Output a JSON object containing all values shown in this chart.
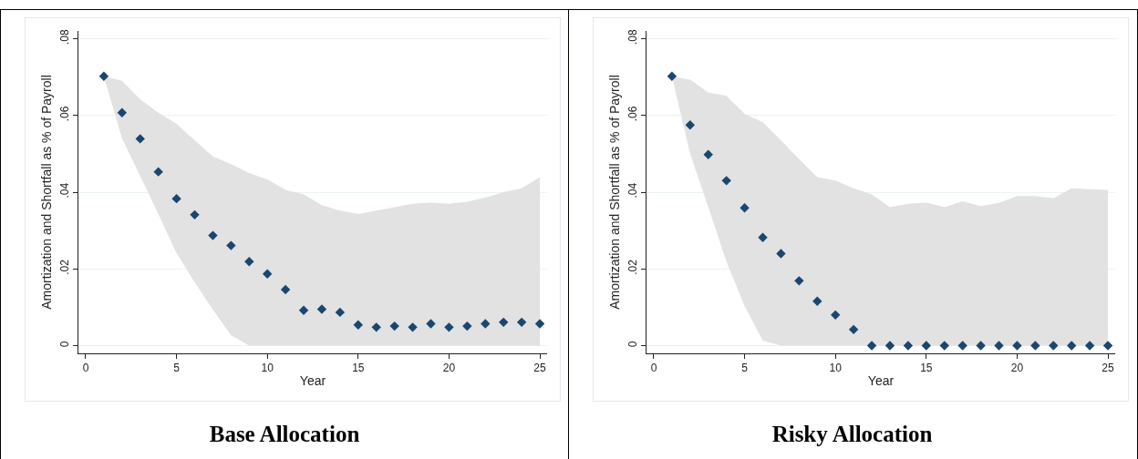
{
  "chart_data": [
    {
      "type": "scatter",
      "title": "Base Allocation",
      "xlabel": "Year",
      "ylabel": "Amortization and Shortfall as % of Payroll",
      "x": [
        1,
        2,
        3,
        4,
        5,
        6,
        7,
        8,
        9,
        10,
        11,
        12,
        13,
        14,
        15,
        16,
        17,
        18,
        19,
        20,
        21,
        22,
        23,
        24,
        25
      ],
      "series": [
        {
          "color": "#1a476f",
          "values": [
            0.0702,
            0.0607,
            0.0539,
            0.0453,
            0.0383,
            0.0341,
            0.0287,
            0.0261,
            0.0219,
            0.0187,
            0.0146,
            0.0092,
            0.0095,
            0.0087,
            0.0054,
            0.0048,
            0.0051,
            0.0048,
            0.0057,
            0.0048,
            0.0051,
            0.0057,
            0.0061,
            0.0061,
            0.0057
          ],
          "lower": [
            0.0702,
            0.054,
            0.0442,
            0.0343,
            0.0241,
            0.0165,
            0.0094,
            0.0027,
            0,
            0,
            0,
            0,
            0,
            0,
            0,
            0,
            0,
            0,
            0,
            0,
            0,
            0,
            0,
            0,
            0
          ],
          "upper": [
            0.0702,
            0.069,
            0.0642,
            0.0607,
            0.0578,
            0.0535,
            0.0493,
            0.0473,
            0.045,
            0.0433,
            0.0406,
            0.0394,
            0.0366,
            0.0352,
            0.0343,
            0.0352,
            0.0361,
            0.037,
            0.0373,
            0.037,
            0.0375,
            0.0386,
            0.04,
            0.041,
            0.0439
          ]
        }
      ],
      "xlim": [
        -0.4,
        25.4
      ],
      "xticks": [
        0,
        5,
        10,
        15,
        20,
        25
      ],
      "ylim": [
        -0.002,
        0.082
      ],
      "yticks": [
        0,
        {
          "value": 0.02,
          "label": ".02"
        },
        {
          "value": 0.04,
          "label": ".04"
        },
        {
          "value": 0.06,
          "label": ".06"
        },
        {
          "value": 0.08,
          "label": ".08"
        }
      ],
      "grid": "y",
      "marker": "diamond"
    },
    {
      "type": "scatter",
      "title": "Risky Allocation",
      "xlabel": "Year",
      "ylabel": "Amortization and Shortfall as % of Payroll",
      "x": [
        1,
        2,
        3,
        4,
        5,
        6,
        7,
        8,
        9,
        10,
        11,
        12,
        13,
        14,
        15,
        16,
        17,
        18,
        19,
        20,
        21,
        22,
        23,
        24,
        25
      ],
      "series": [
        {
          "color": "#1a476f",
          "values": [
            0.0702,
            0.0575,
            0.0498,
            0.043,
            0.0359,
            0.0282,
            0.024,
            0.0169,
            0.0116,
            0.008,
            0.0042,
            0,
            0,
            0,
            0,
            0,
            0,
            0,
            0,
            0,
            0,
            0,
            0,
            0,
            0
          ],
          "lower": [
            0.0702,
            0.05,
            0.0361,
            0.0219,
            0.0103,
            0.0013,
            0,
            0,
            0,
            0,
            0,
            0,
            0,
            0,
            0,
            0,
            0,
            0,
            0,
            0,
            0,
            0,
            0,
            0,
            0
          ],
          "upper": [
            0.0702,
            0.0693,
            0.066,
            0.0651,
            0.0604,
            0.0582,
            0.0535,
            0.0486,
            0.0439,
            0.043,
            0.041,
            0.0394,
            0.0361,
            0.037,
            0.0373,
            0.0361,
            0.0376,
            0.0364,
            0.0372,
            0.039,
            0.039,
            0.0384,
            0.041,
            0.0408,
            0.0406
          ]
        }
      ],
      "xlim": [
        -0.4,
        25.4
      ],
      "xticks": [
        0,
        5,
        10,
        15,
        20,
        25
      ],
      "ylim": [
        -0.002,
        0.082
      ],
      "yticks": [
        0,
        {
          "value": 0.02,
          "label": ".02"
        },
        {
          "value": 0.04,
          "label": ".04"
        },
        {
          "value": 0.06,
          "label": ".06"
        },
        {
          "value": 0.08,
          "label": ".08"
        }
      ],
      "grid": "y",
      "marker": "diamond"
    }
  ]
}
